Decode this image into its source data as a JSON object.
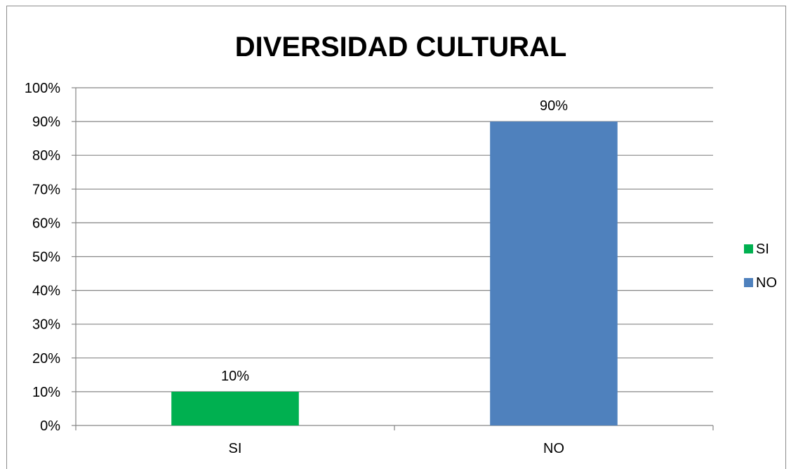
{
  "chart_data": {
    "type": "bar",
    "title": "DIVERSIDAD CULTURAL",
    "categories": [
      "SI",
      "NO"
    ],
    "values": [
      10,
      90
    ],
    "value_labels": [
      "10%",
      "90%"
    ],
    "bar_colors": [
      "#00b050",
      "#4f81bd"
    ],
    "ylim": [
      0,
      100
    ],
    "yticks": [
      "0%",
      "10%",
      "20%",
      "30%",
      "40%",
      "50%",
      "60%",
      "70%",
      "80%",
      "90%",
      "100%"
    ],
    "grid": true,
    "gridline_color": "#868686",
    "legend": {
      "placement": "right",
      "entries": [
        {
          "label": "SI",
          "color": "#00b050"
        },
        {
          "label": "NO",
          "color": "#4f81bd"
        }
      ]
    }
  }
}
